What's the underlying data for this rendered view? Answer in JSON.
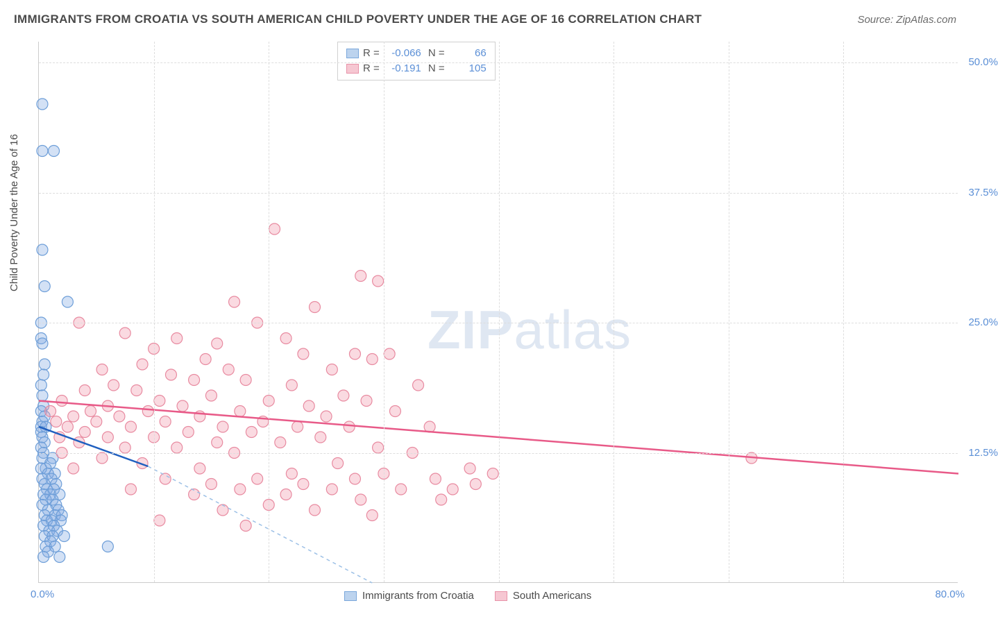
{
  "title": "IMMIGRANTS FROM CROATIA VS SOUTH AMERICAN CHILD POVERTY UNDER THE AGE OF 16 CORRELATION CHART",
  "source": "Source: ZipAtlas.com",
  "ylabel": "Child Poverty Under the Age of 16",
  "watermark_bold": "ZIP",
  "watermark_light": "atlas",
  "chart": {
    "type": "scatter",
    "xlim": [
      0,
      80
    ],
    "ylim": [
      0,
      52
    ],
    "x_ticks_labels": {
      "left": "0.0%",
      "right": "80.0%"
    },
    "y_ticks": [
      {
        "v": 12.5,
        "label": "12.5%"
      },
      {
        "v": 25.0,
        "label": "25.0%"
      },
      {
        "v": 37.5,
        "label": "37.5%"
      },
      {
        "v": 50.0,
        "label": "50.0%"
      }
    ],
    "x_gridlines": [
      10,
      20,
      30,
      40,
      50,
      60,
      70
    ],
    "grid_color": "#dddddd",
    "background_color": "#ffffff",
    "axis_color": "#cccccc",
    "tick_label_color": "#5b8fd6",
    "tick_fontsize": 15,
    "title_fontsize": 17,
    "title_color": "#4a4a4a",
    "marker_radius": 8,
    "marker_stroke_width": 1.2,
    "series": [
      {
        "name": "Immigrants from Croatia",
        "fill": "rgba(130,170,225,0.35)",
        "stroke": "#6d9ed8",
        "swatch_fill": "#bcd3ee",
        "swatch_border": "#7aa7db",
        "R": "-0.066",
        "N": "66",
        "trend": {
          "x1": 0,
          "y1": 15.0,
          "x2": 9.5,
          "y2": 11.2,
          "color": "#1f5fbf",
          "width": 2.5,
          "dash": "none"
        },
        "trend_ext": {
          "x1": 9.5,
          "y1": 11.2,
          "x2": 29,
          "y2": 0,
          "color": "#9cc0e6",
          "width": 1.5,
          "dash": "5,5"
        },
        "points": [
          [
            0.3,
            46.0
          ],
          [
            0.3,
            41.5
          ],
          [
            1.3,
            41.5
          ],
          [
            0.3,
            32.0
          ],
          [
            0.5,
            28.5
          ],
          [
            2.5,
            27.0
          ],
          [
            0.2,
            25.0
          ],
          [
            0.2,
            23.5
          ],
          [
            0.3,
            23.0
          ],
          [
            0.5,
            21.0
          ],
          [
            0.4,
            20.0
          ],
          [
            0.2,
            19.0
          ],
          [
            0.3,
            18.0
          ],
          [
            0.4,
            17.0
          ],
          [
            0.2,
            16.5
          ],
          [
            0.5,
            16.0
          ],
          [
            0.3,
            15.5
          ],
          [
            0.2,
            15.0
          ],
          [
            0.6,
            15.0
          ],
          [
            0.2,
            14.5
          ],
          [
            0.3,
            14.0
          ],
          [
            0.5,
            13.5
          ],
          [
            0.2,
            13.0
          ],
          [
            0.4,
            12.5
          ],
          [
            1.2,
            12.0
          ],
          [
            0.3,
            12.0
          ],
          [
            1.0,
            11.5
          ],
          [
            0.6,
            11.0
          ],
          [
            0.2,
            11.0
          ],
          [
            1.4,
            10.5
          ],
          [
            0.8,
            10.5
          ],
          [
            0.3,
            10.0
          ],
          [
            1.1,
            10.0
          ],
          [
            0.5,
            9.5
          ],
          [
            1.5,
            9.5
          ],
          [
            0.7,
            9.0
          ],
          [
            1.3,
            9.0
          ],
          [
            0.4,
            8.5
          ],
          [
            1.0,
            8.5
          ],
          [
            1.8,
            8.5
          ],
          [
            0.6,
            8.0
          ],
          [
            1.2,
            8.0
          ],
          [
            0.3,
            7.5
          ],
          [
            1.5,
            7.5
          ],
          [
            0.8,
            7.0
          ],
          [
            1.7,
            7.0
          ],
          [
            0.5,
            6.5
          ],
          [
            1.4,
            6.5
          ],
          [
            2.0,
            6.5
          ],
          [
            0.7,
            6.0
          ],
          [
            1.1,
            6.0
          ],
          [
            1.9,
            6.0
          ],
          [
            0.4,
            5.5
          ],
          [
            1.3,
            5.5
          ],
          [
            0.9,
            5.0
          ],
          [
            1.6,
            5.0
          ],
          [
            0.5,
            4.5
          ],
          [
            1.2,
            4.5
          ],
          [
            2.2,
            4.5
          ],
          [
            1.0,
            4.0
          ],
          [
            0.6,
            3.5
          ],
          [
            1.4,
            3.5
          ],
          [
            6.0,
            3.5
          ],
          [
            0.8,
            3.0
          ],
          [
            0.4,
            2.5
          ],
          [
            1.8,
            2.5
          ]
        ]
      },
      {
        "name": "South Americans",
        "fill": "rgba(240,150,170,0.35)",
        "stroke": "#e88aa0",
        "swatch_fill": "#f6c7d2",
        "swatch_border": "#e892a8",
        "R": "-0.191",
        "N": "105",
        "trend": {
          "x1": 0,
          "y1": 17.5,
          "x2": 80,
          "y2": 10.5,
          "color": "#e85a88",
          "width": 2.5,
          "dash": "none"
        },
        "points": [
          [
            20.5,
            34.0
          ],
          [
            28.0,
            29.5
          ],
          [
            29.5,
            29.0
          ],
          [
            17.0,
            27.0
          ],
          [
            3.5,
            25.0
          ],
          [
            24.0,
            26.5
          ],
          [
            7.5,
            24.0
          ],
          [
            12.0,
            23.5
          ],
          [
            15.5,
            23.0
          ],
          [
            19.0,
            25.0
          ],
          [
            10.0,
            22.5
          ],
          [
            21.5,
            23.5
          ],
          [
            23.0,
            22.0
          ],
          [
            27.5,
            22.0
          ],
          [
            14.5,
            21.5
          ],
          [
            29.0,
            21.5
          ],
          [
            30.5,
            22.0
          ],
          [
            9.0,
            21.0
          ],
          [
            5.5,
            20.5
          ],
          [
            16.5,
            20.5
          ],
          [
            25.5,
            20.5
          ],
          [
            11.5,
            20.0
          ],
          [
            13.5,
            19.5
          ],
          [
            18.0,
            19.5
          ],
          [
            6.5,
            19.0
          ],
          [
            22.0,
            19.0
          ],
          [
            33.0,
            19.0
          ],
          [
            4.0,
            18.5
          ],
          [
            8.5,
            18.5
          ],
          [
            15.0,
            18.0
          ],
          [
            26.5,
            18.0
          ],
          [
            2.0,
            17.5
          ],
          [
            10.5,
            17.5
          ],
          [
            20.0,
            17.5
          ],
          [
            28.5,
            17.5
          ],
          [
            6.0,
            17.0
          ],
          [
            12.5,
            17.0
          ],
          [
            23.5,
            17.0
          ],
          [
            1.0,
            16.5
          ],
          [
            4.5,
            16.5
          ],
          [
            9.5,
            16.5
          ],
          [
            17.5,
            16.5
          ],
          [
            31.0,
            16.5
          ],
          [
            3.0,
            16.0
          ],
          [
            7.0,
            16.0
          ],
          [
            14.0,
            16.0
          ],
          [
            25.0,
            16.0
          ],
          [
            1.5,
            15.5
          ],
          [
            5.0,
            15.5
          ],
          [
            11.0,
            15.5
          ],
          [
            19.5,
            15.5
          ],
          [
            2.5,
            15.0
          ],
          [
            8.0,
            15.0
          ],
          [
            16.0,
            15.0
          ],
          [
            22.5,
            15.0
          ],
          [
            27.0,
            15.0
          ],
          [
            34.0,
            15.0
          ],
          [
            4.0,
            14.5
          ],
          [
            13.0,
            14.5
          ],
          [
            18.5,
            14.5
          ],
          [
            1.8,
            14.0
          ],
          [
            6.0,
            14.0
          ],
          [
            10.0,
            14.0
          ],
          [
            24.5,
            14.0
          ],
          [
            3.5,
            13.5
          ],
          [
            15.5,
            13.5
          ],
          [
            21.0,
            13.5
          ],
          [
            7.5,
            13.0
          ],
          [
            12.0,
            13.0
          ],
          [
            29.5,
            13.0
          ],
          [
            62.0,
            12.0
          ],
          [
            2.0,
            12.5
          ],
          [
            17.0,
            12.5
          ],
          [
            32.5,
            12.5
          ],
          [
            5.5,
            12.0
          ],
          [
            9.0,
            11.5
          ],
          [
            26.0,
            11.5
          ],
          [
            37.5,
            11.0
          ],
          [
            14.0,
            11.0
          ],
          [
            3.0,
            11.0
          ],
          [
            22.0,
            10.5
          ],
          [
            30.0,
            10.5
          ],
          [
            39.5,
            10.5
          ],
          [
            11.0,
            10.0
          ],
          [
            19.0,
            10.0
          ],
          [
            27.5,
            10.0
          ],
          [
            34.5,
            10.0
          ],
          [
            15.0,
            9.5
          ],
          [
            23.0,
            9.5
          ],
          [
            38.0,
            9.5
          ],
          [
            8.0,
            9.0
          ],
          [
            17.5,
            9.0
          ],
          [
            25.5,
            9.0
          ],
          [
            31.5,
            9.0
          ],
          [
            36.0,
            9.0
          ],
          [
            13.5,
            8.5
          ],
          [
            21.5,
            8.5
          ],
          [
            28.0,
            8.0
          ],
          [
            35.0,
            8.0
          ],
          [
            20.0,
            7.5
          ],
          [
            24.0,
            7.0
          ],
          [
            16.0,
            7.0
          ],
          [
            29.0,
            6.5
          ],
          [
            10.5,
            6.0
          ],
          [
            18.0,
            5.5
          ]
        ]
      }
    ]
  }
}
